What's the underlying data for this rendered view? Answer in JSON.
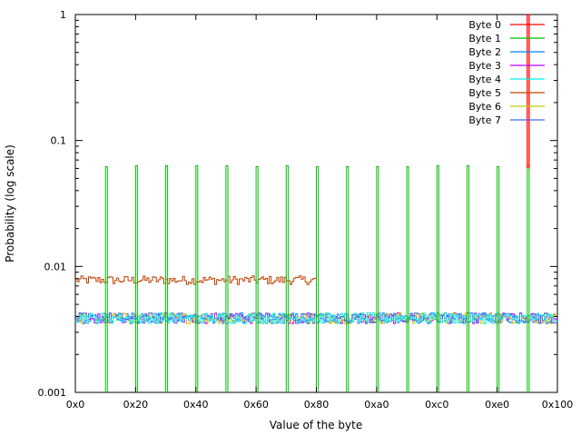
{
  "chart_data": {
    "type": "line",
    "xlabel": "Value of the byte",
    "ylabel": "Probability (log scale)",
    "xlim": [
      0,
      256
    ],
    "ylim": [
      0.001,
      1
    ],
    "y_scale": "log",
    "x_ticks": [
      {
        "value": 0,
        "label": "0x0"
      },
      {
        "value": 32,
        "label": "0x20"
      },
      {
        "value": 64,
        "label": "0x40"
      },
      {
        "value": 96,
        "label": "0x60"
      },
      {
        "value": 128,
        "label": "0x80"
      },
      {
        "value": 160,
        "label": "0xa0"
      },
      {
        "value": 192,
        "label": "0xc0"
      },
      {
        "value": 224,
        "label": "0xe0"
      },
      {
        "value": 256,
        "label": "0x100"
      }
    ],
    "y_ticks": [
      {
        "value": 0.001,
        "label": "0.001"
      },
      {
        "value": 0.01,
        "label": "0.01"
      },
      {
        "value": 0.1,
        "label": "0.1"
      },
      {
        "value": 1,
        "label": "1"
      }
    ],
    "legend_position": "top-right",
    "series": [
      {
        "name": "Byte 0",
        "color": "#ff0000",
        "kind": "spike",
        "points": [
          [
            240,
            1.0
          ]
        ],
        "baseline": 0.06
      },
      {
        "name": "Byte 1",
        "color": "#00c000",
        "kind": "spikes",
        "points": [
          [
            16,
            0.062
          ],
          [
            32,
            0.063
          ],
          [
            48,
            0.063
          ],
          [
            64,
            0.063
          ],
          [
            80,
            0.063
          ],
          [
            96,
            0.062
          ],
          [
            112,
            0.063
          ],
          [
            128,
            0.062
          ],
          [
            144,
            0.062
          ],
          [
            160,
            0.062
          ],
          [
            176,
            0.062
          ],
          [
            192,
            0.063
          ],
          [
            208,
            0.063
          ],
          [
            224,
            0.062
          ],
          [
            240,
            0.063
          ]
        ]
      },
      {
        "name": "Byte 2",
        "color": "#0080ff",
        "kind": "noise",
        "level": 0.0039
      },
      {
        "name": "Byte 3",
        "color": "#c000ff",
        "kind": "noise",
        "level": 0.0039
      },
      {
        "name": "Byte 4",
        "color": "#00eeee",
        "kind": "noise",
        "level": 0.0039
      },
      {
        "name": "Byte 5",
        "color": "#c04000",
        "kind": "halfrange",
        "level": 0.0078,
        "range": [
          0,
          128
        ]
      },
      {
        "name": "Byte 6",
        "color": "#c8c800",
        "kind": "noise",
        "level": 0.0039
      },
      {
        "name": "Byte 7",
        "color": "#4169e1",
        "kind": "noise",
        "level": 0.0039
      }
    ]
  }
}
